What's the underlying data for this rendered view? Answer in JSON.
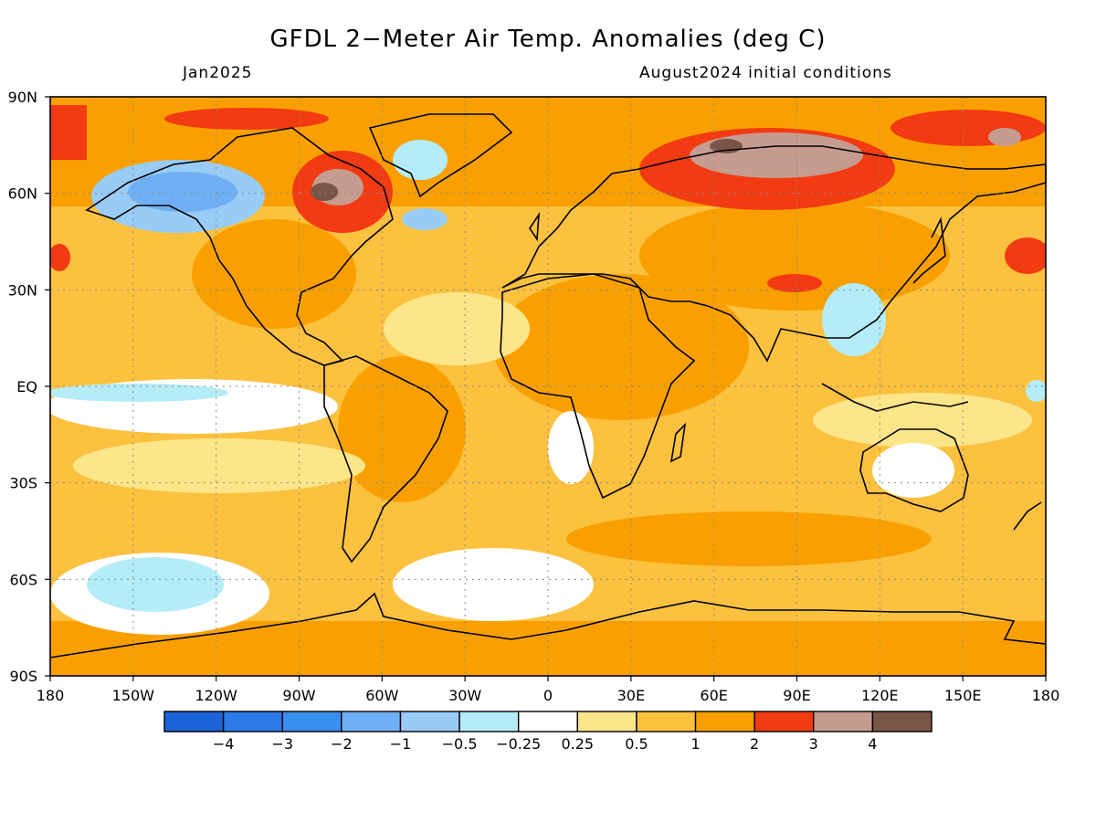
{
  "header": {
    "title": "GFDL 2−Meter Air Temp. Anomalies (deg C)",
    "valid_month": "Jan2025",
    "init": "August2024 initial conditions"
  },
  "axes": {
    "lat_labels": [
      "90N",
      "60N",
      "30N",
      "EQ",
      "30S",
      "60S",
      "90S"
    ],
    "lon_labels": [
      "180",
      "150W",
      "120W",
      "90W",
      "60W",
      "30W",
      "0",
      "30E",
      "60E",
      "90E",
      "120E",
      "150E",
      "180"
    ]
  },
  "legend": {
    "colors": [
      "#1b63d6",
      "#2b7ae8",
      "#3a8ff0",
      "#6fb0f5",
      "#99cbf7",
      "#b4ecf8",
      "#ffffff",
      "#fde68a",
      "#fcc13e",
      "#f9a000",
      "#f23b12",
      "#c79c90",
      "#795548"
    ],
    "labels": [
      "−4",
      "−3",
      "−2",
      "−1",
      "−0.5",
      "−0.25",
      "0.25",
      "0.5",
      "1",
      "2",
      "3",
      "4"
    ]
  }
}
